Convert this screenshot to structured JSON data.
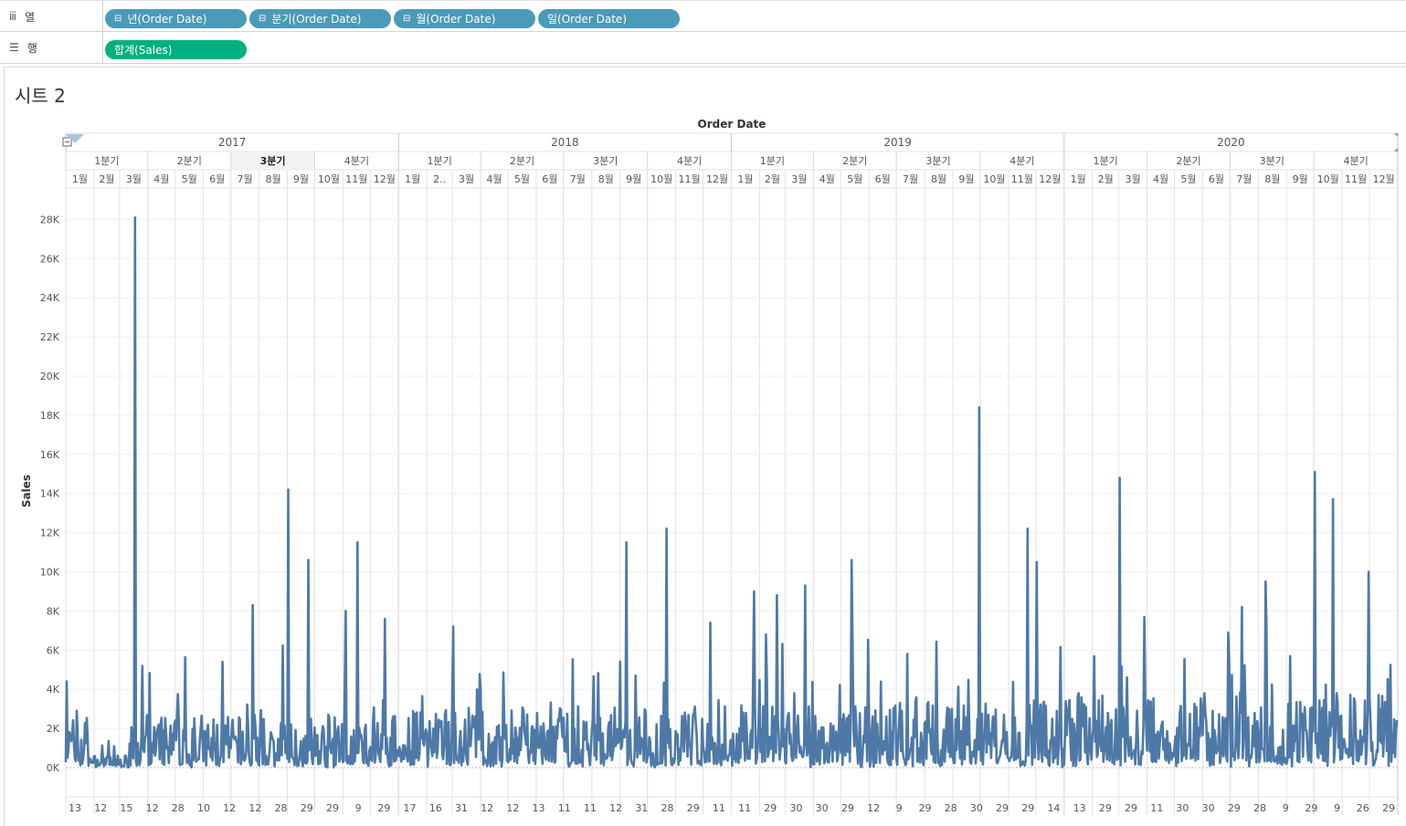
{
  "shelves": {
    "columns": {
      "label": "열",
      "icon": "columns-icon",
      "pills": [
        {
          "text": "년(Order Date)",
          "expand": "⊟"
        },
        {
          "text": "분기(Order Date)",
          "expand": "⊟"
        },
        {
          "text": "월(Order Date)",
          "expand": "⊟"
        },
        {
          "text": "일(Order Date)",
          "expand": ""
        }
      ]
    },
    "rows": {
      "label": "행",
      "icon": "rows-icon",
      "pills": [
        {
          "text": "합계(Sales)"
        }
      ]
    }
  },
  "sheet": {
    "title": "시트 2"
  },
  "chart_data": {
    "type": "line",
    "xlabel": "Order Date",
    "ylabel": "Sales",
    "ylim": [
      0,
      29000
    ],
    "y_ticks": [
      "0K",
      "2K",
      "4K",
      "6K",
      "8K",
      "10K",
      "12K",
      "14K",
      "16K",
      "18K",
      "20K",
      "22K",
      "24K",
      "26K",
      "28K"
    ],
    "years": [
      "2017",
      "2018",
      "2019",
      "2020"
    ],
    "quarters": [
      "1분기",
      "2분기",
      "3분기",
      "4분기"
    ],
    "months": [
      "1월",
      "2월",
      "3월",
      "4월",
      "5월",
      "6월",
      "7월",
      "8월",
      "9월",
      "10월",
      "11월",
      "12월"
    ],
    "month_short_feb_2018": "2..",
    "bottom_day_labels": [
      "13",
      "12",
      "15",
      "12",
      "28",
      "10",
      "12",
      "12",
      "28",
      "29",
      "29",
      "9",
      "29",
      "17",
      "16",
      "31",
      "12",
      "12",
      "13",
      "11",
      "11",
      "12",
      "31",
      "28",
      "29",
      "11",
      "11",
      "29",
      "30",
      "30",
      "29",
      "12",
      "9",
      "29",
      "28",
      "30",
      "29",
      "29",
      "14",
      "13",
      "29",
      "29",
      "11",
      "30",
      "30",
      "29",
      "28",
      "9",
      "29",
      "9",
      "26",
      "29"
    ],
    "series": [
      {
        "color": "#4e79a7",
        "peaks": [
          {
            "date": "2017-01-02",
            "value": 4400
          },
          {
            "date": "2017-03-18",
            "value": 28100
          },
          {
            "date": "2017-03-26",
            "value": 5200
          },
          {
            "date": "2017-06-22",
            "value": 5400
          },
          {
            "date": "2017-07-25",
            "value": 8300
          },
          {
            "date": "2017-09-02",
            "value": 14200
          },
          {
            "date": "2017-09-24",
            "value": 10600
          },
          {
            "date": "2017-11-04",
            "value": 8000
          },
          {
            "date": "2017-11-17",
            "value": 11500
          },
          {
            "date": "2017-12-17",
            "value": 7600
          },
          {
            "date": "2018-03-02",
            "value": 7200
          },
          {
            "date": "2018-09-08",
            "value": 11500
          },
          {
            "date": "2018-10-22",
            "value": 12200
          },
          {
            "date": "2018-12-09",
            "value": 7400
          },
          {
            "date": "2019-01-26",
            "value": 9000
          },
          {
            "date": "2019-02-20",
            "value": 8800
          },
          {
            "date": "2019-03-23",
            "value": 9300
          },
          {
            "date": "2019-05-13",
            "value": 10600
          },
          {
            "date": "2019-09-30",
            "value": 18400
          },
          {
            "date": "2019-11-22",
            "value": 12200
          },
          {
            "date": "2019-12-02",
            "value": 10500
          },
          {
            "date": "2020-03-02",
            "value": 14800
          },
          {
            "date": "2020-06-29",
            "value": 6900
          },
          {
            "date": "2020-08-09",
            "value": 9500
          },
          {
            "date": "2020-10-02",
            "value": 15100
          },
          {
            "date": "2020-10-22",
            "value": 13700
          },
          {
            "date": "2020-11-30",
            "value": 10000
          }
        ]
      }
    ]
  }
}
